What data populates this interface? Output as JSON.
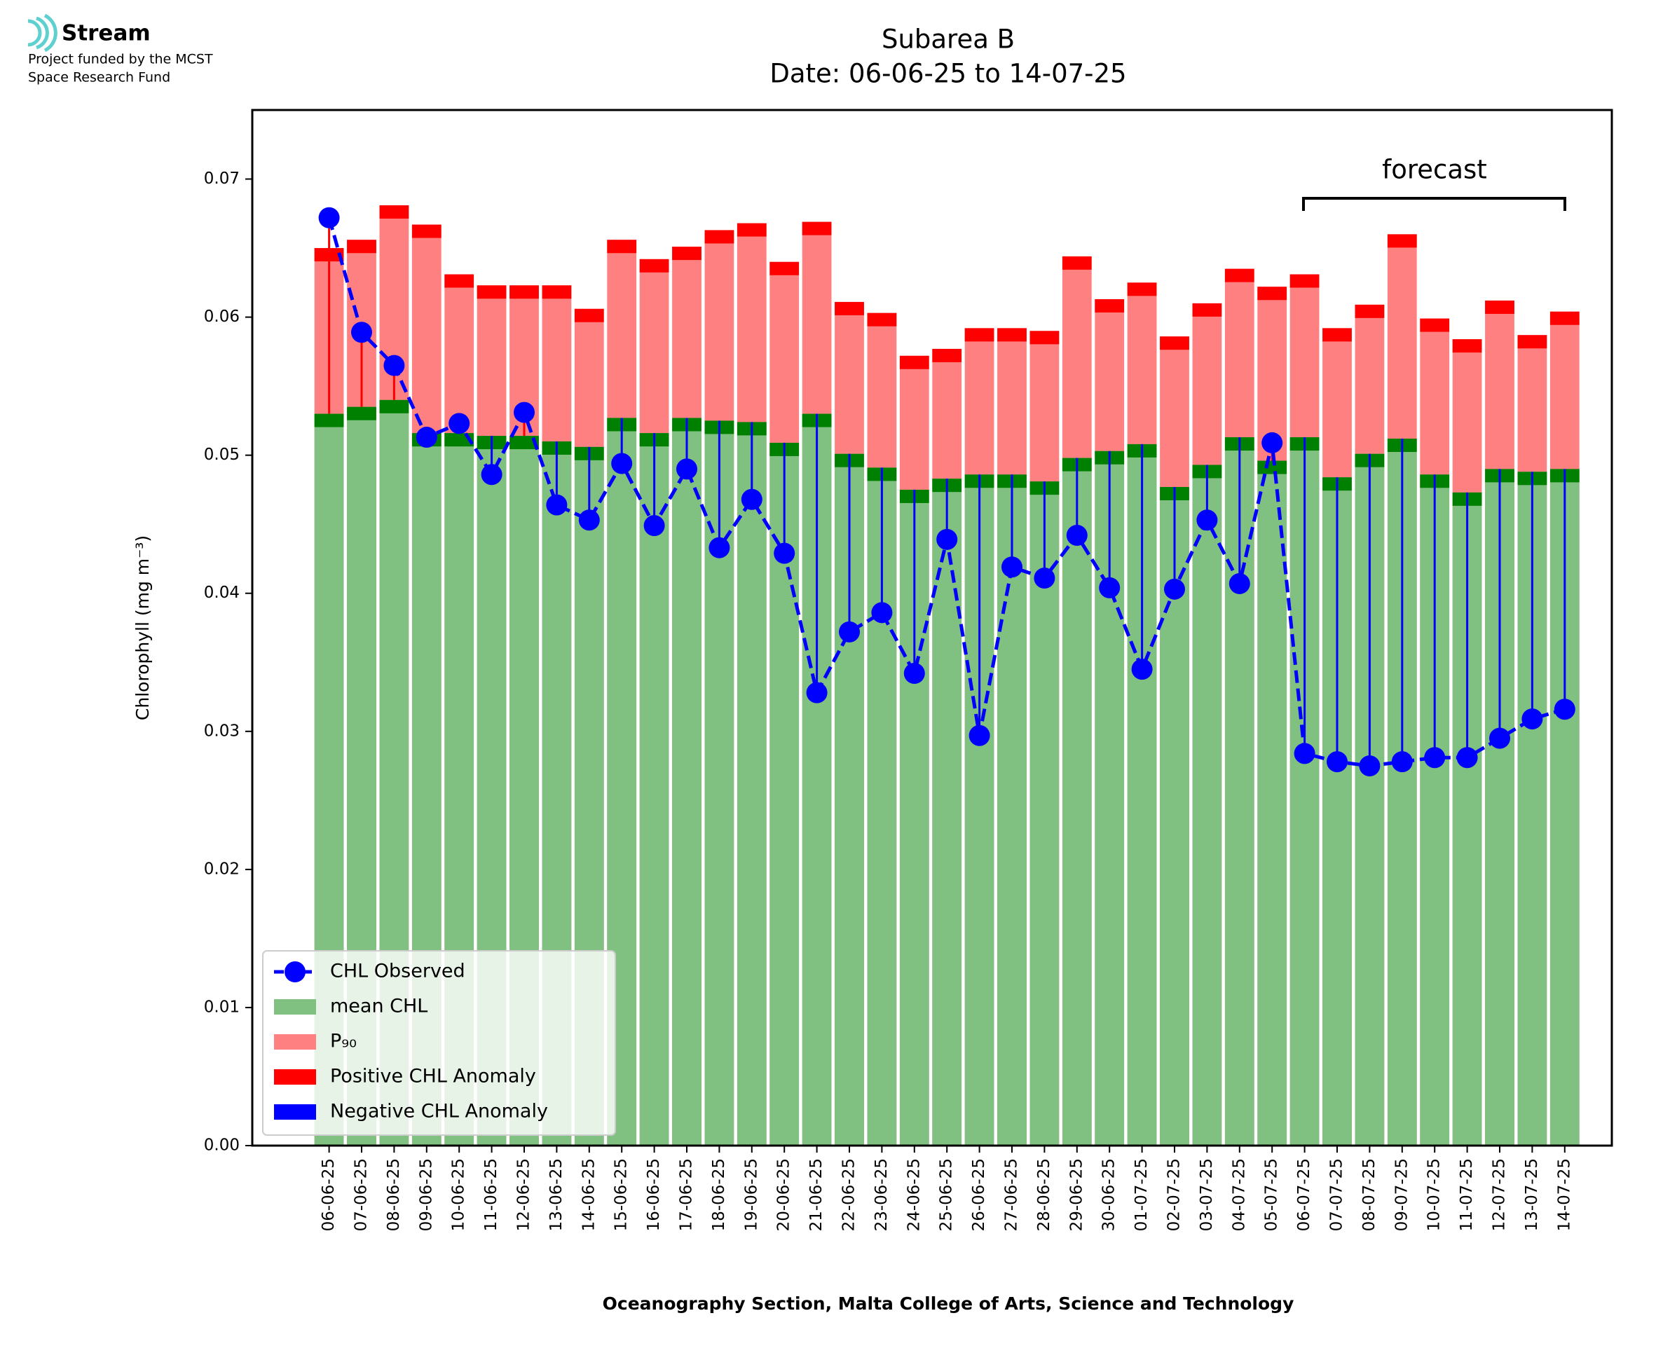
{
  "logo": {
    "name": "Stream",
    "lines": [
      "Project funded by the MCST",
      "Space Research Fund"
    ]
  },
  "chart_data": {
    "type": "bar",
    "title": "Subarea B",
    "subtitle": "Date: 06-06-25 to 14-07-25",
    "y_label": "Chlorophyll (mg m⁻³)",
    "x_label": "Oceanography Section, Malta College of Arts, Science and Technology",
    "annotation": "forecast",
    "categories": [
      "06-06-25",
      "07-06-25",
      "08-06-25",
      "09-06-25",
      "10-06-25",
      "11-06-25",
      "12-06-25",
      "13-06-25",
      "14-06-25",
      "15-06-25",
      "16-06-25",
      "17-06-25",
      "18-06-25",
      "19-06-25",
      "20-06-25",
      "21-06-25",
      "22-06-25",
      "23-06-25",
      "24-06-25",
      "25-06-25",
      "26-06-25",
      "27-06-25",
      "28-06-25",
      "29-06-25",
      "30-06-25",
      "01-07-25",
      "02-07-25",
      "03-07-25",
      "04-07-25",
      "05-07-25",
      "06-07-25",
      "07-07-25",
      "08-07-25",
      "09-07-25",
      "10-07-25",
      "11-07-25",
      "12-07-25",
      "13-07-25",
      "14-07-25"
    ],
    "series": [
      {
        "name": "mean CHL",
        "color": "#80c080",
        "band_color": "#008000",
        "values": [
          0.053,
          0.0535,
          0.054,
          0.0516,
          0.0516,
          0.0514,
          0.0514,
          0.051,
          0.0506,
          0.0527,
          0.0516,
          0.0527,
          0.0525,
          0.0524,
          0.0509,
          0.053,
          0.0501,
          0.0491,
          0.0475,
          0.0483,
          0.0486,
          0.0486,
          0.0481,
          0.0498,
          0.0503,
          0.0508,
          0.0477,
          0.0493,
          0.0513,
          0.0496,
          0.0513,
          0.0484,
          0.0501,
          0.0512,
          0.0486,
          0.0473,
          0.049,
          0.0488,
          0.049
        ]
      },
      {
        "name": "P₉₀",
        "color": "#ff8080",
        "band_color": "#ff0000",
        "values": [
          0.065,
          0.0656,
          0.0681,
          0.0667,
          0.0631,
          0.0623,
          0.0623,
          0.0623,
          0.0606,
          0.0656,
          0.0642,
          0.0651,
          0.0663,
          0.0668,
          0.064,
          0.0669,
          0.0611,
          0.0603,
          0.0572,
          0.0577,
          0.0592,
          0.0592,
          0.059,
          0.0644,
          0.0613,
          0.0625,
          0.0586,
          0.061,
          0.0635,
          0.0622,
          0.0631,
          0.0592,
          0.0609,
          0.066,
          0.0599,
          0.0584,
          0.0612,
          0.0587,
          0.0604
        ]
      },
      {
        "name": "CHL Observed",
        "color": "#0000ff",
        "values": [
          0.0672,
          0.0589,
          0.0565,
          0.0513,
          0.0523,
          0.0486,
          0.0531,
          0.0464,
          0.0453,
          0.0494,
          0.0449,
          0.049,
          0.0433,
          0.0468,
          0.0429,
          0.0328,
          0.0372,
          0.0386,
          0.0342,
          0.0439,
          0.0297,
          0.0419,
          0.0411,
          0.0442,
          0.0404,
          0.0345,
          0.0403,
          0.0453,
          0.0407,
          0.0509,
          0.0284,
          0.0278,
          0.0275,
          0.0278,
          0.0281,
          0.0281,
          0.0295,
          0.0309,
          0.0316
        ]
      }
    ],
    "anomalies": [
      {
        "name": "Positive CHL Anomaly",
        "color": "#ff0000"
      },
      {
        "name": "Negative CHL Anomaly",
        "color": "#0000ff"
      }
    ],
    "ylim": [
      0,
      0.075
    ],
    "yticks": [
      {
        "value": 0,
        "label": "0.00"
      },
      0.01,
      0.02,
      0.03,
      0.04,
      0.05,
      0.06,
      0.07
    ],
    "legend": "lower left"
  }
}
